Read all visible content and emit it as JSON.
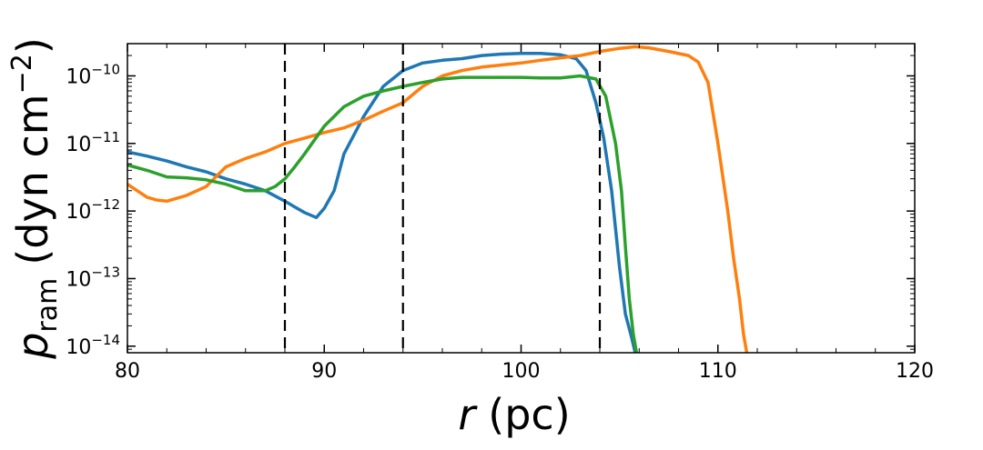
{
  "chart_data": {
    "type": "line",
    "title": "",
    "xlabel": "r (pc)",
    "xlabel_var": "r",
    "xlabel_unit": "(pc)",
    "ylabel": "p_ram (dyn cm^-2)",
    "ylabel_var": "p",
    "ylabel_sub": "ram",
    "ylabel_unit_a": "(dyn cm",
    "ylabel_exp": "−2",
    "ylabel_unit_b": ")",
    "xscale": "linear",
    "yscale": "log",
    "xlim": [
      80,
      120
    ],
    "ylim": [
      8e-15,
      3e-10
    ],
    "xticks": [
      {
        "value": 80,
        "label": "80"
      },
      {
        "value": 90,
        "label": "90"
      },
      {
        "value": 100,
        "label": "100"
      },
      {
        "value": 110,
        "label": "110"
      },
      {
        "value": 120,
        "label": "120"
      }
    ],
    "yticks": [
      {
        "value": 1e-14,
        "base": "10",
        "exp": "−14"
      },
      {
        "value": 1e-13,
        "base": "10",
        "exp": "−13"
      },
      {
        "value": 1e-12,
        "base": "10",
        "exp": "−12"
      },
      {
        "value": 1e-11,
        "base": "10",
        "exp": "−11"
      },
      {
        "value": 1e-10,
        "base": "10",
        "exp": "−10"
      }
    ],
    "vlines": [
      88,
      94,
      104
    ],
    "series": [
      {
        "name": "blue",
        "color": "#1f77b4",
        "x": [
          80,
          81,
          82,
          83,
          84,
          85,
          86,
          87,
          88,
          88.5,
          89,
          89.6,
          90,
          90.5,
          91,
          92,
          93,
          94,
          95,
          96,
          97,
          98,
          99,
          100,
          101,
          102,
          102.8,
          103.3,
          103.8,
          104.2,
          104.6,
          105,
          105.3,
          105.6,
          105.8
        ],
        "y": [
          7.5e-12,
          6.5e-12,
          5.5e-12,
          4.5e-12,
          3.8e-12,
          3e-12,
          2.5e-12,
          2e-12,
          1.4e-12,
          1.15e-12,
          9.5e-13,
          8e-13,
          1.1e-12,
          2e-12,
          7e-12,
          2.5e-11,
          7e-11,
          1.2e-10,
          1.55e-10,
          1.7e-10,
          1.8e-10,
          2e-10,
          2.1e-10,
          2.15e-10,
          2.15e-10,
          2.05e-10,
          1.8e-10,
          1.2e-10,
          4e-11,
          1.2e-11,
          2e-12,
          1.5e-13,
          3e-14,
          1.4e-14,
          8e-15
        ]
      },
      {
        "name": "orange",
        "color": "#ff7f0e",
        "x": [
          80,
          80.5,
          81,
          81.5,
          82,
          83,
          84,
          85,
          86,
          87,
          88,
          89,
          90,
          91,
          92,
          93,
          94,
          95,
          96,
          97,
          98,
          99,
          100,
          101,
          102,
          103,
          104,
          105,
          105.8,
          106.5,
          107.5,
          108.5,
          109,
          109.5,
          110,
          110.5,
          110.8,
          111.1,
          111.3,
          111.5
        ],
        "y": [
          2.5e-12,
          2e-12,
          1.6e-12,
          1.45e-12,
          1.4e-12,
          1.7e-12,
          2.3e-12,
          4.5e-12,
          6e-12,
          7.5e-12,
          1e-11,
          1.2e-11,
          1.45e-11,
          1.7e-11,
          2.2e-11,
          3e-11,
          4e-11,
          7e-11,
          1e-10,
          1.2e-10,
          1.35e-10,
          1.45e-10,
          1.55e-10,
          1.7e-10,
          1.85e-10,
          2e-10,
          2.3e-10,
          2.55e-10,
          2.7e-10,
          2.6e-10,
          2.3e-10,
          2e-10,
          1.6e-10,
          8e-11,
          1e-11,
          1e-12,
          2e-13,
          5e-14,
          1.5e-14,
          7e-15
        ]
      },
      {
        "name": "green",
        "color": "#2ca02c",
        "x": [
          80,
          81,
          82,
          83,
          84,
          85,
          86,
          87,
          87.5,
          88,
          88.5,
          89,
          90,
          91,
          92,
          93,
          94,
          95,
          96,
          97,
          98,
          99,
          100,
          101,
          102,
          103,
          103.8,
          104.3,
          104.8,
          105.1,
          105.3,
          105.5,
          105.7,
          105.9
        ],
        "y": [
          4.8e-12,
          4e-12,
          3.2e-12,
          3.1e-12,
          2.9e-12,
          2.5e-12,
          2e-12,
          2e-12,
          2.3e-12,
          3e-12,
          4.5e-12,
          7e-12,
          1.8e-11,
          3.5e-11,
          5e-11,
          6e-11,
          7e-11,
          8e-11,
          9e-11,
          9.5e-11,
          9.5e-11,
          9.5e-11,
          9.5e-11,
          9.3e-11,
          9.3e-11,
          1e-10,
          9e-11,
          5e-11,
          1e-11,
          2e-12,
          3e-13,
          5e-14,
          1.5e-14,
          7e-15
        ]
      }
    ]
  }
}
